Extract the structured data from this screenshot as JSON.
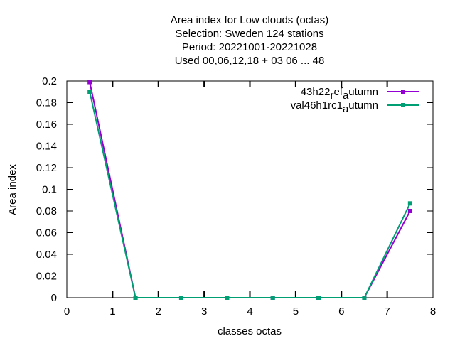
{
  "chart_data": {
    "type": "line",
    "title_lines": [
      "Area index  for Low clouds (octas)",
      "Selection: Sweden    124 stations",
      "Period: 20221001-20221028",
      "Used  00,06,12,18  + 03 06 ... 48"
    ],
    "xlabel": "classes octas",
    "ylabel": "Area index",
    "xlim": [
      0,
      8
    ],
    "ylim": [
      0,
      0.2
    ],
    "x_ticks": [
      "0",
      "1",
      "2",
      "3",
      "4",
      "5",
      "6",
      "7",
      "8"
    ],
    "y_ticks": [
      "0",
      "0.02",
      "0.04",
      "0.06",
      "0.08",
      "0.1",
      "0.12",
      "0.14",
      "0.16",
      "0.18",
      "0.2"
    ],
    "grid": false,
    "legend_position": "top-right",
    "x": [
      0.5,
      1.5,
      2.5,
      3.5,
      4.5,
      5.5,
      6.5,
      7.5
    ],
    "series": [
      {
        "legend_main": "43h22",
        "legend_sub": "r",
        "legend_mid": "ef",
        "legend_sub2": "a",
        "legend_end": "utumn",
        "color": "#9400d3",
        "values": [
          0.199,
          0.0,
          0.0,
          0.0,
          0.0,
          0.0,
          0.0,
          0.08
        ]
      },
      {
        "legend_main": "val46h1rc1",
        "legend_sub": "",
        "legend_mid": "",
        "legend_sub2": "a",
        "legend_end": "utumn",
        "color": "#009e73",
        "values": [
          0.19,
          0.0,
          0.0,
          0.0,
          0.0,
          0.0,
          0.0,
          0.087
        ]
      }
    ]
  }
}
